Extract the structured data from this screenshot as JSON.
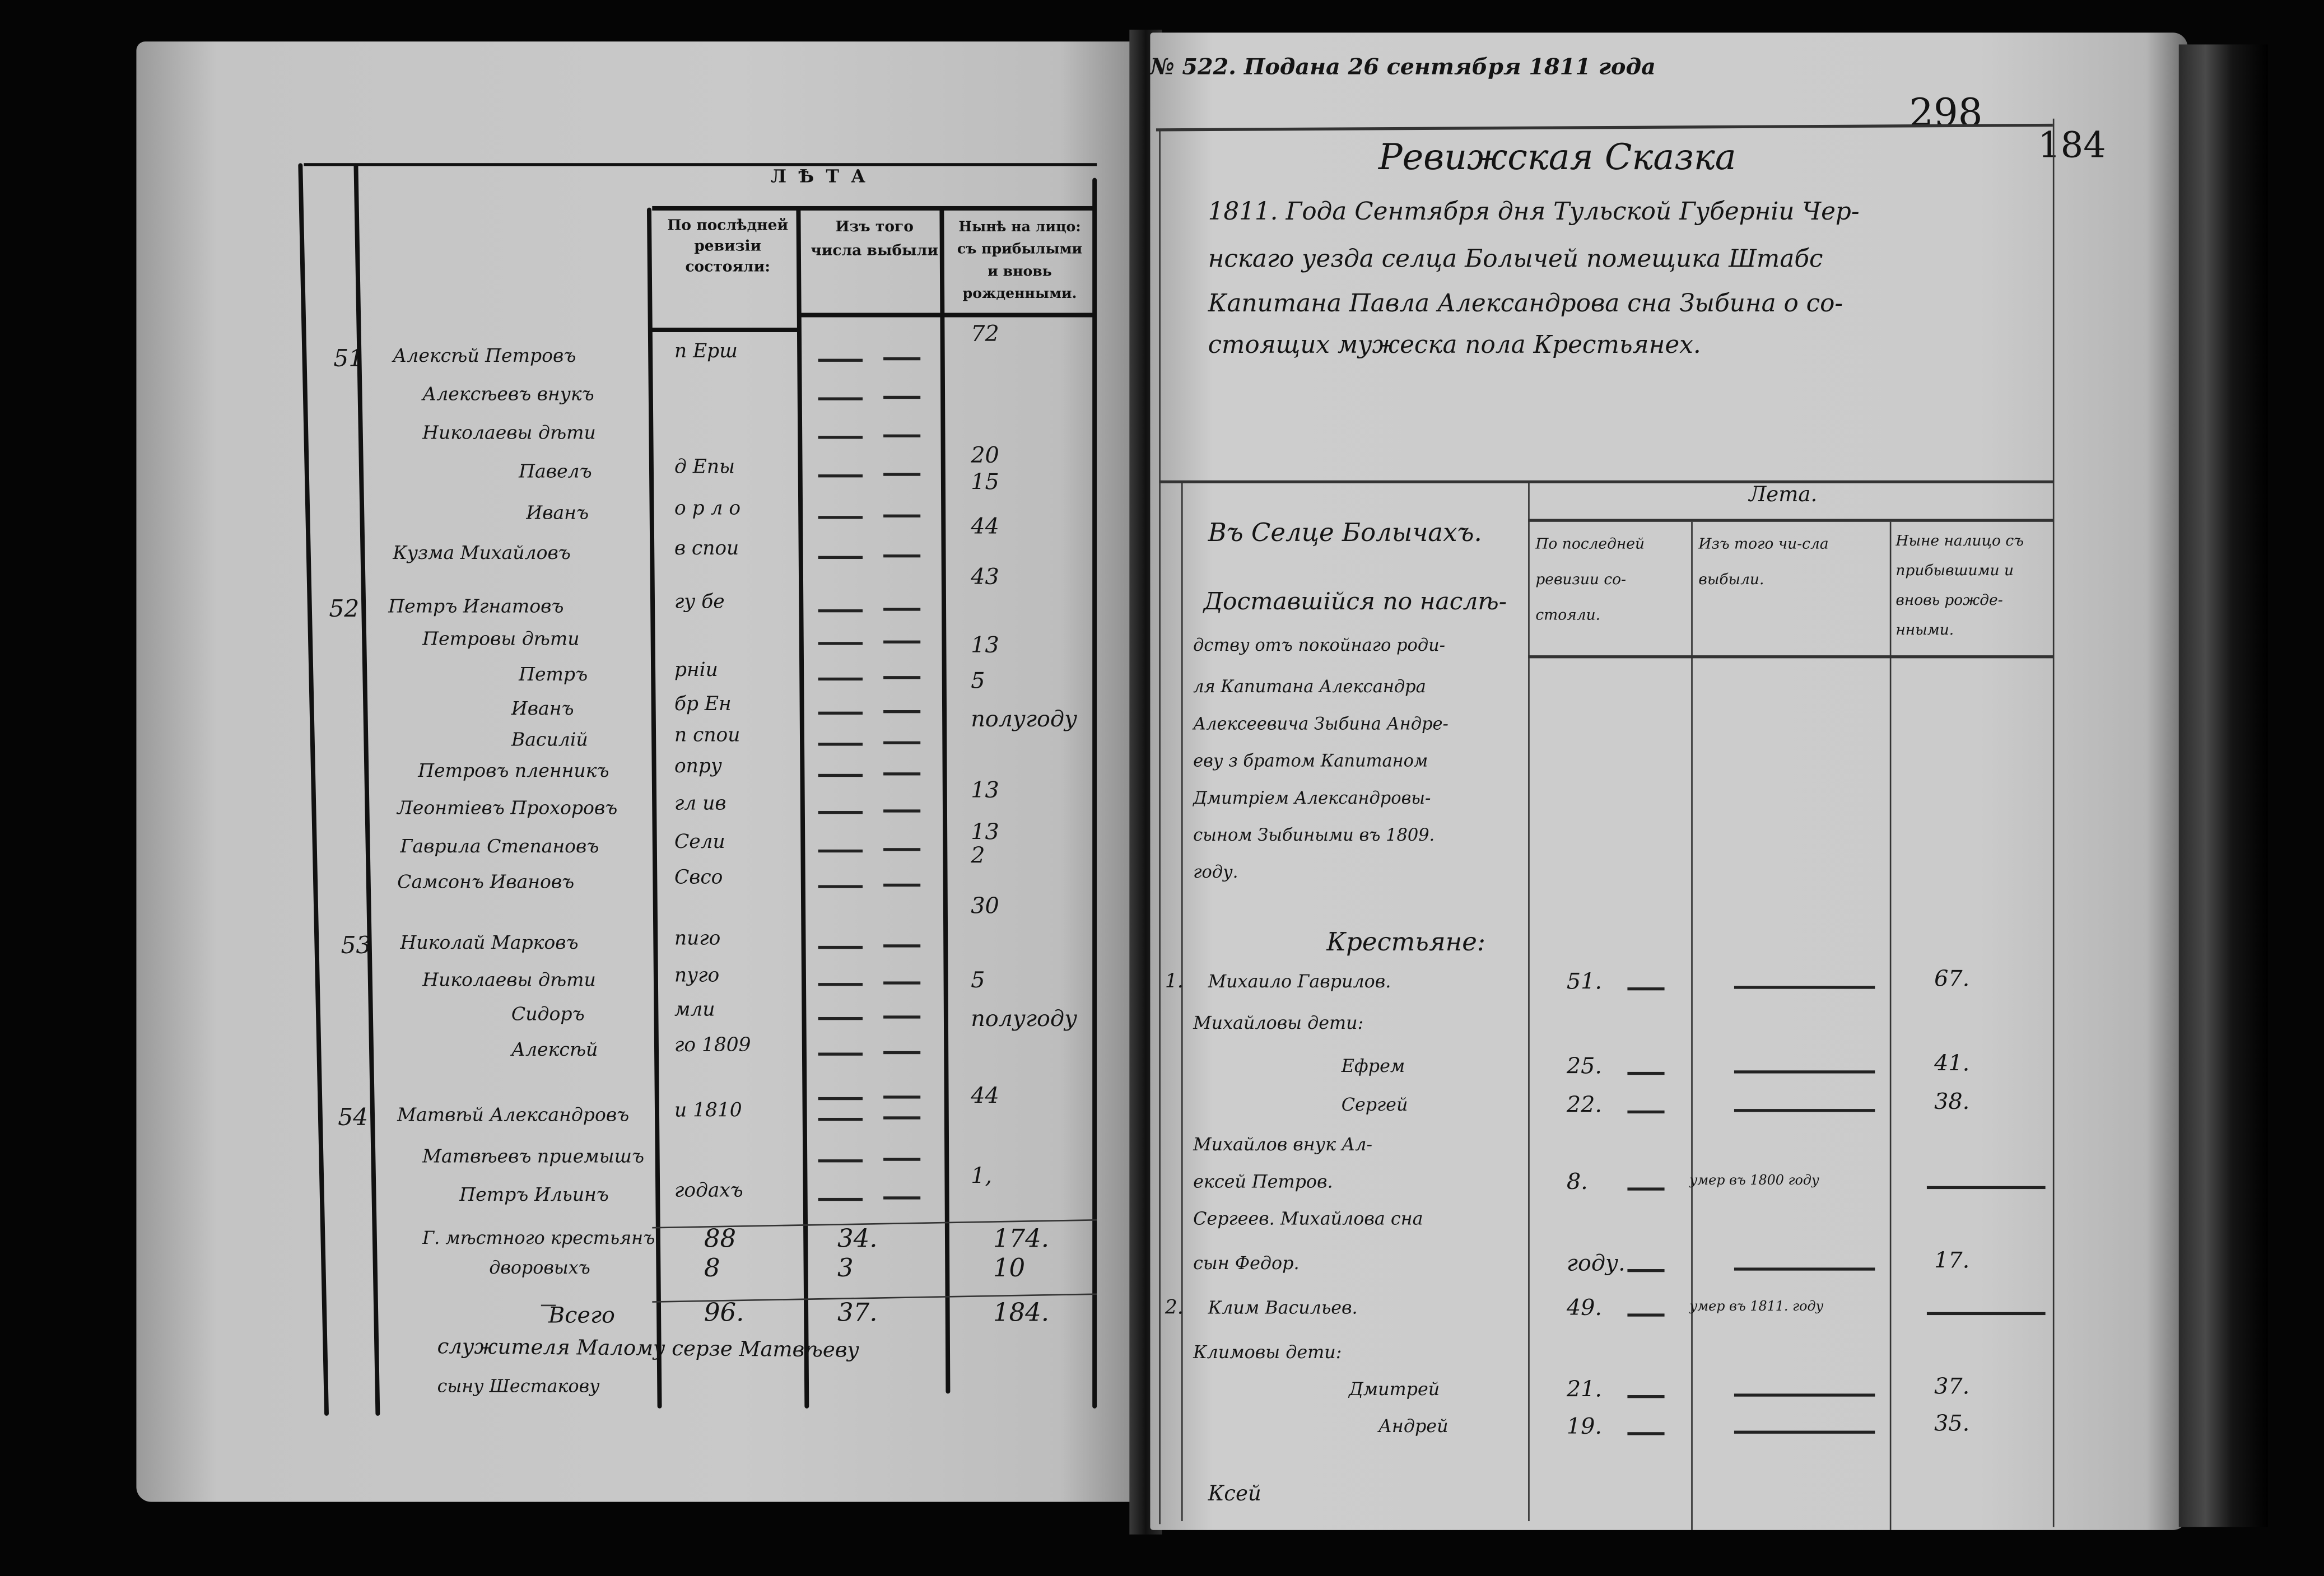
{
  "left_page": {
    "group_header": "ЛѢТА",
    "column_headers": [
      "По послѣдней ревизіи состояли:",
      "Изъ того числа выбыли",
      "Нынѣ на лицо: съ прибылыми и вновь рожденными."
    ],
    "rows": [
      {
        "no": "",
        "name": "",
        "note": "",
        "last": "",
        "left": "",
        "now": "72"
      },
      {
        "no": "51",
        "name": "Алексѣй Петровъ",
        "note": "п Ерш",
        "last": "",
        "left": "",
        "now": ""
      },
      {
        "no": "",
        "name": "Алексѣевъ внукъ",
        "note": "",
        "last": "",
        "left": "",
        "now": ""
      },
      {
        "no": "",
        "name": "Николаевы дѣти",
        "note": "",
        "last": "",
        "left": "",
        "now": "20"
      },
      {
        "no": "",
        "name": "Павелъ",
        "note": "д Епы",
        "last": "",
        "left": "",
        "now": "15"
      },
      {
        "no": "",
        "name": "Иванъ",
        "note": "о р л о",
        "last": "",
        "left": "",
        "now": "44"
      },
      {
        "no": "",
        "name": "Кузма Михайловъ",
        "note": "в спои",
        "last": "",
        "left": "",
        "now": "43"
      },
      {
        "no": "52",
        "name": "Петръ Игнатовъ",
        "note": "гу бе",
        "last": "",
        "left": "",
        "now": ""
      },
      {
        "no": "",
        "name": "Петровы дѣти",
        "note": "",
        "last": "",
        "left": "",
        "now": "13"
      },
      {
        "no": "",
        "name": "Петръ",
        "note": "рніи",
        "last": "",
        "left": "",
        "now": "5"
      },
      {
        "no": "",
        "name": "Иванъ",
        "note": "бр Ен",
        "last": "",
        "left": "",
        "now": "полугоду"
      },
      {
        "no": "",
        "name": "Василій",
        "note": "п спои",
        "last": "",
        "left": "",
        "now": ""
      },
      {
        "no": "",
        "name": "Петровъ пленникъ",
        "note": "опру",
        "last": "",
        "left": "",
        "now": "13"
      },
      {
        "no": "",
        "name": "Леонтіевъ Прохоровъ",
        "note": "гл ив",
        "last": "",
        "left": "",
        "now": "13"
      },
      {
        "no": "",
        "name": "Гаврила Степановъ",
        "note": "Сели",
        "last": "",
        "left": "",
        "now": "2"
      },
      {
        "no": "",
        "name": "Самсонъ Ивановъ",
        "note": "Свсо",
        "last": "",
        "left": "",
        "now": "30"
      },
      {
        "no": "53",
        "name": "Николай Марковъ",
        "note": "пиго",
        "last": "",
        "left": "",
        "now": ""
      },
      {
        "no": "",
        "name": "Николаевы дѣти",
        "note": "пуго",
        "last": "",
        "left": "",
        "now": "5"
      },
      {
        "no": "",
        "name": "Сидоръ",
        "note": "мли",
        "last": "",
        "left": "",
        "now": "полугоду"
      },
      {
        "no": "",
        "name": "Алексѣй",
        "note": "го 1809",
        "last": "",
        "left": "",
        "now": ""
      },
      {
        "no": "",
        "name": "",
        "note": "",
        "last": "",
        "left": "",
        "now": "44"
      },
      {
        "no": "54",
        "name": "Матвѣй Александровъ",
        "note": "и 1810",
        "last": "",
        "left": "",
        "now": ""
      },
      {
        "no": "",
        "name": "Матвѣевъ приемышъ",
        "note": "",
        "last": "",
        "left": "",
        "now": "1,"
      },
      {
        "no": "",
        "name": "Петръ Ильинъ",
        "note": "годахъ",
        "last": "",
        "left": "",
        "now": ""
      }
    ],
    "totals": [
      {
        "label": "Г. мѣстного крестьянъ",
        "last": "88",
        "left": "34.",
        "now": "174."
      },
      {
        "label": "дворовыхъ",
        "last": "8",
        "left": "3",
        "now": "10"
      },
      {
        "label": "Всего",
        "last": "96.",
        "left": "37.",
        "now": "184."
      }
    ],
    "footnote": [
      "служителя Малому серзе Матвѣеву",
      "сыну Шестакову"
    ]
  },
  "right_page": {
    "filing_note": "№ 522. Подана 26 сентября 1811 года",
    "folio_numbers": [
      "298",
      "184"
    ],
    "title": "Ревижская Сказка",
    "intro_lines": [
      "1811. Года Сентября дня Тульской Губерніи Чер-",
      "нскаго уезда селца Болычей помещика Штабс",
      "Капитана Павла Александрова сна Зыбина о со-",
      "стоящих мужеска пола Крестьянех."
    ],
    "table": {
      "group_header": "Лета.",
      "column_headers": [
        "По последней ревизии со-стояли.",
        "Изъ того чи-сла выбыли.",
        "Ныне налицо съ прибывшими и вновь рожде-нными."
      ],
      "village": "Въ Селце Болычахъ.",
      "inheritance_note": [
        "Доставшійся по наслѣ-",
        "дству отъ покойнаго роди-",
        "ля Капитана Александра",
        "Алексеевича Зыбина Андре-",
        "еву з братом Капитаном",
        "Дмитріем Александровы-",
        "сыном Зыбиными въ 1809.",
        "году."
      ],
      "section": "Крестьяне:",
      "rows": [
        {
          "no": "1.",
          "name": "Михаило Гаврилов.",
          "last": "51.",
          "left": "",
          "now": "67."
        },
        {
          "no": "",
          "name": "Михайловы дети:",
          "last": "",
          "left": "",
          "now": ""
        },
        {
          "no": "",
          "name": "Ефрем",
          "last": "25.",
          "left": "",
          "now": "41."
        },
        {
          "no": "",
          "name": "Сергей",
          "last": "22.",
          "left": "",
          "now": "38."
        },
        {
          "no": "",
          "name": "Михайлов внук Ал-",
          "last": "",
          "left": "",
          "now": ""
        },
        {
          "no": "",
          "name": "ексей Петров.",
          "last": "8.",
          "left": "умер въ 1800 году",
          "now": ""
        },
        {
          "no": "",
          "name": "Сергеев. Михайлова сна",
          "last": "",
          "left": "",
          "now": ""
        },
        {
          "no": "",
          "name": "сын Федор.",
          "last": "году.",
          "left": "",
          "now": "17."
        },
        {
          "no": "2.",
          "name": "Клим Васильев.",
          "last": "49.",
          "left": "умер въ 1811. году",
          "now": ""
        },
        {
          "no": "",
          "name": "Климовы дети:",
          "last": "",
          "left": "",
          "now": ""
        },
        {
          "no": "",
          "name": "Дмитрей",
          "last": "21.",
          "left": "",
          "now": "37."
        },
        {
          "no": "",
          "name": "Андрей",
          "last": "19.",
          "left": "",
          "now": "35."
        }
      ],
      "catchword": "Ксей"
    }
  },
  "colors": {
    "background": "#000000",
    "paper": "#c8c8c8",
    "ink": "#141414"
  }
}
